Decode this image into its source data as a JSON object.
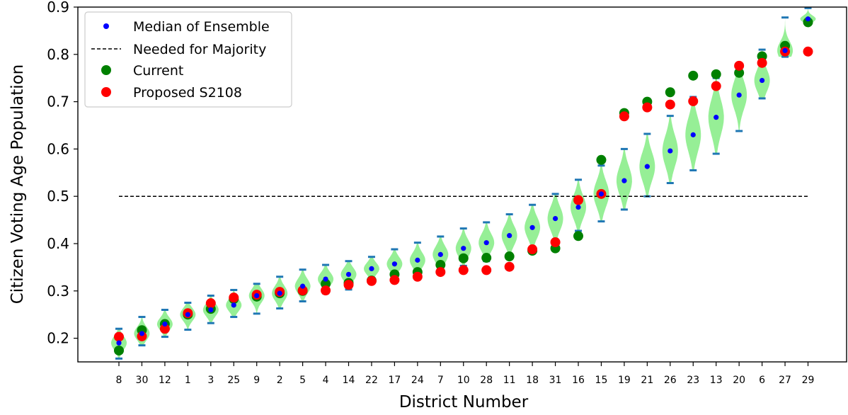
{
  "chart_data": {
    "type": "scatter",
    "title": "",
    "xlabel": "District Number",
    "ylabel": "Citizen Voting Age Population",
    "ylim": [
      0.15,
      0.9
    ],
    "yticks": [
      0.2,
      0.3,
      0.4,
      0.5,
      0.6,
      0.7,
      0.8,
      0.9
    ],
    "categories": [
      "8",
      "30",
      "12",
      "1",
      "3",
      "25",
      "9",
      "2",
      "5",
      "4",
      "14",
      "22",
      "17",
      "24",
      "7",
      "10",
      "28",
      "11",
      "18",
      "31",
      "16",
      "15",
      "19",
      "21",
      "26",
      "23",
      "13",
      "20",
      "6",
      "27",
      "29"
    ],
    "majority_threshold": 0.5,
    "legend": {
      "placement": "top-left",
      "items": [
        {
          "label": "Median of Ensemble",
          "marker": "small-dot",
          "color": "#0000ff"
        },
        {
          "label": "Needed for Majority",
          "marker": "dashed-line",
          "color": "#000000"
        },
        {
          "label": "Current",
          "marker": "dot",
          "color": "#008000"
        },
        {
          "label": "Proposed S2108",
          "marker": "dot",
          "color": "#ff0000"
        }
      ]
    },
    "series": [
      {
        "name": "Median of Ensemble",
        "color": "#0000ff",
        "values": [
          0.19,
          0.21,
          0.23,
          0.25,
          0.26,
          0.27,
          0.29,
          0.295,
          0.31,
          0.325,
          0.335,
          0.347,
          0.357,
          0.365,
          0.377,
          0.39,
          0.402,
          0.417,
          0.434,
          0.453,
          0.477,
          0.505,
          0.533,
          0.563,
          0.596,
          0.63,
          0.667,
          0.714,
          0.745,
          0.808,
          0.875
        ]
      },
      {
        "name": "Current",
        "color": "#008000",
        "values": [
          0.174,
          0.217,
          0.23,
          0.25,
          0.262,
          0.283,
          0.288,
          0.295,
          0.3,
          0.315,
          0.317,
          0.322,
          0.335,
          0.34,
          0.355,
          0.369,
          0.37,
          0.373,
          0.385,
          0.39,
          0.416,
          0.577,
          0.676,
          0.7,
          0.72,
          0.755,
          0.758,
          0.761,
          0.796,
          0.818,
          0.868
        ]
      },
      {
        "name": "Proposed S2108",
        "color": "#ff0000",
        "values": [
          0.203,
          0.204,
          0.22,
          0.253,
          0.274,
          0.286,
          0.292,
          0.298,
          0.301,
          0.301,
          0.313,
          0.321,
          0.323,
          0.33,
          0.34,
          0.344,
          0.344,
          0.351,
          0.388,
          0.403,
          0.492,
          0.505,
          0.669,
          0.688,
          0.694,
          0.701,
          0.733,
          0.776,
          0.782,
          0.806,
          0.806
        ]
      }
    ],
    "ensemble_range": {
      "color": "#90ee90",
      "bar_color": "#1f77b4",
      "min": [
        0.157,
        0.185,
        0.203,
        0.218,
        0.232,
        0.245,
        0.252,
        0.263,
        0.278,
        0.295,
        0.303,
        0.318,
        0.326,
        0.333,
        0.34,
        0.353,
        0.363,
        0.373,
        0.385,
        0.397,
        0.427,
        0.447,
        0.472,
        0.5,
        0.528,
        0.555,
        0.59,
        0.638,
        0.707,
        0.795,
        0.868
      ],
      "max": [
        0.22,
        0.245,
        0.26,
        0.275,
        0.29,
        0.302,
        0.315,
        0.33,
        0.345,
        0.355,
        0.363,
        0.372,
        0.388,
        0.402,
        0.415,
        0.432,
        0.445,
        0.462,
        0.482,
        0.505,
        0.535,
        0.565,
        0.6,
        0.632,
        0.67,
        0.71,
        0.75,
        0.77,
        0.81,
        0.878,
        0.898
      ]
    }
  }
}
